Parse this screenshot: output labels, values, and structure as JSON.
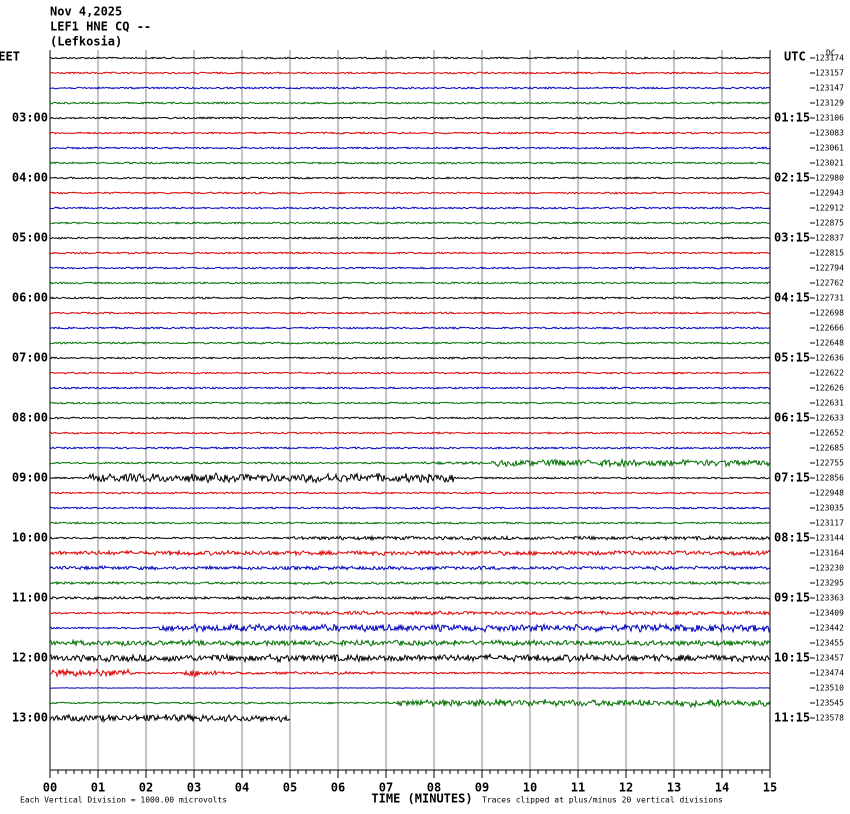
{
  "header": [
    "Nov 4,2025",
    "LEF1 HNE CQ --",
    "(Lefkosia)"
  ],
  "left_zone": "EET",
  "right_zone": "UTC",
  "dc_label": "DC",
  "trace_colors": [
    "#000000",
    "#e00000",
    "#0000c0",
    "#007000"
  ],
  "rows": [
    {
      "level": 123174
    },
    {
      "level": 123157
    },
    {
      "level": 123147
    },
    {
      "level": 123129
    },
    {
      "left": "03:00",
      "right": "01:15",
      "level": 123106
    },
    {
      "level": 123083
    },
    {
      "level": 123061
    },
    {
      "level": 123021
    },
    {
      "left": "04:00",
      "right": "02:15",
      "level": 122980
    },
    {
      "level": 122943
    },
    {
      "level": 122912
    },
    {
      "level": 122875
    },
    {
      "left": "05:00",
      "right": "03:15",
      "level": 122837
    },
    {
      "level": 122815
    },
    {
      "level": 122794
    },
    {
      "level": 122762
    },
    {
      "left": "06:00",
      "right": "04:15",
      "level": 122731
    },
    {
      "level": 122698
    },
    {
      "level": 122666
    },
    {
      "level": 122648
    },
    {
      "left": "07:00",
      "right": "05:15",
      "level": 122636
    },
    {
      "level": 122622
    },
    {
      "level": 122626
    },
    {
      "level": 122631
    },
    {
      "left": "08:00",
      "right": "06:15",
      "level": 122633
    },
    {
      "level": 122652
    },
    {
      "level": 122685
    },
    {
      "level": 122755
    },
    {
      "left": "09:00",
      "right": "07:15",
      "level": 122856
    },
    {
      "level": 122948
    },
    {
      "level": 123035
    },
    {
      "level": 123117
    },
    {
      "left": "10:00",
      "right": "08:15",
      "level": 123144
    },
    {
      "level": 123164
    },
    {
      "level": 123230
    },
    {
      "level": 123295
    },
    {
      "left": "11:00",
      "right": "09:15",
      "level": 123363
    },
    {
      "level": 123409
    },
    {
      "level": 123442
    },
    {
      "level": 123455
    },
    {
      "left": "12:00",
      "right": "10:15",
      "level": 123457
    },
    {
      "level": 123474
    },
    {
      "level": 123510
    },
    {
      "level": 123545
    },
    {
      "left": "13:00",
      "right": "11:15",
      "level": 123578
    }
  ],
  "x_axis": {
    "label": "TIME (MINUTES)",
    "xlim": [
      0,
      15
    ],
    "xticks": [
      {
        "value": 0,
        "label": "00"
      },
      {
        "value": 1,
        "label": "01"
      },
      {
        "value": 2,
        "label": "02"
      },
      {
        "value": 3,
        "label": "03"
      },
      {
        "value": 4,
        "label": "04"
      },
      {
        "value": 5,
        "label": "05"
      },
      {
        "value": 6,
        "label": "06"
      },
      {
        "value": 7,
        "label": "07"
      },
      {
        "value": 8,
        "label": "08"
      },
      {
        "value": 9,
        "label": "09"
      },
      {
        "value": 10,
        "label": "10"
      },
      {
        "value": 11,
        "label": "11"
      },
      {
        "value": 12,
        "label": "12"
      },
      {
        "value": 13,
        "label": "13"
      },
      {
        "value": 14,
        "label": "14"
      },
      {
        "value": 15,
        "label": "15"
      }
    ]
  },
  "footer": {
    "scale_note": "Each Vertical Division = 1000.00 microvolts",
    "clip_note": "Traces clipped at plus/minus 20 vertical divisions"
  }
}
